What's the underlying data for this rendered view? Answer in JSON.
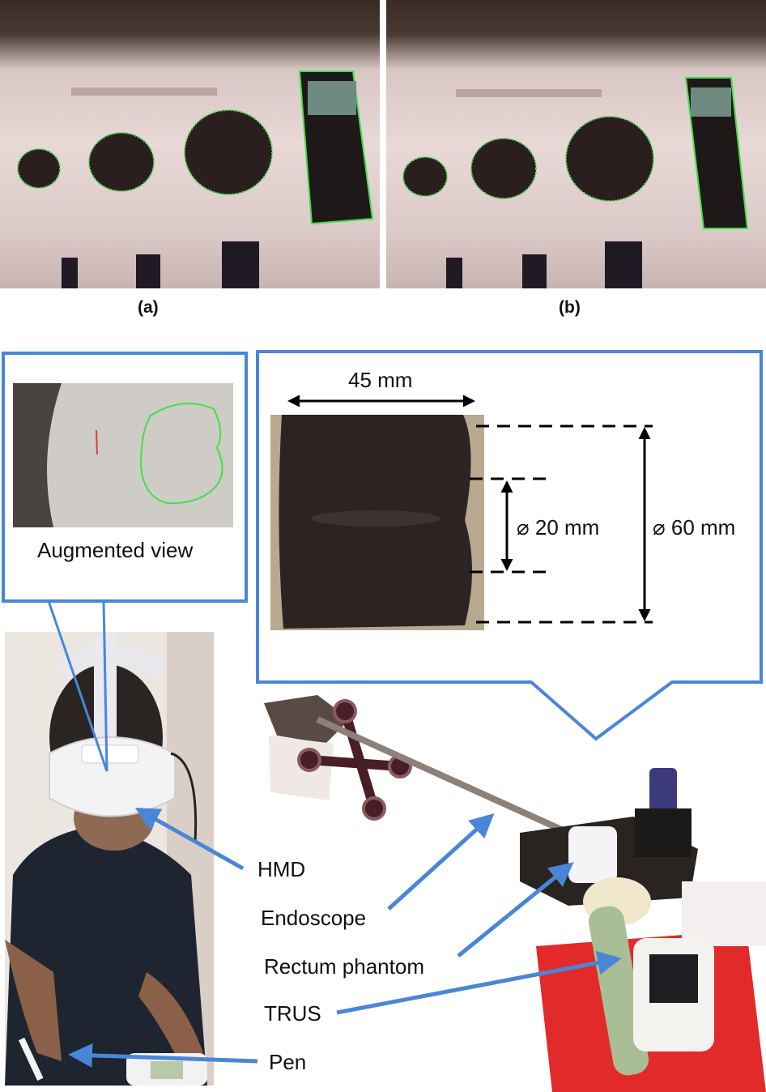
{
  "panels": {
    "a_label": "(a)",
    "b_label": "(b)"
  },
  "inset": {
    "augmented_caption": "Augmented view"
  },
  "dimensions": {
    "width_label": "45 mm",
    "inner_diameter_label": "⌀ 20 mm",
    "outer_diameter_label": "⌀ 60 mm"
  },
  "callouts": {
    "hmd": "HMD",
    "endoscope": "Endoscope",
    "rectum_phantom": "Rectum phantom",
    "trus": "TRUS",
    "pen": "Pen"
  },
  "colors": {
    "callout_blue": "#4a86d8",
    "overlay_green": "#3fe04a"
  }
}
